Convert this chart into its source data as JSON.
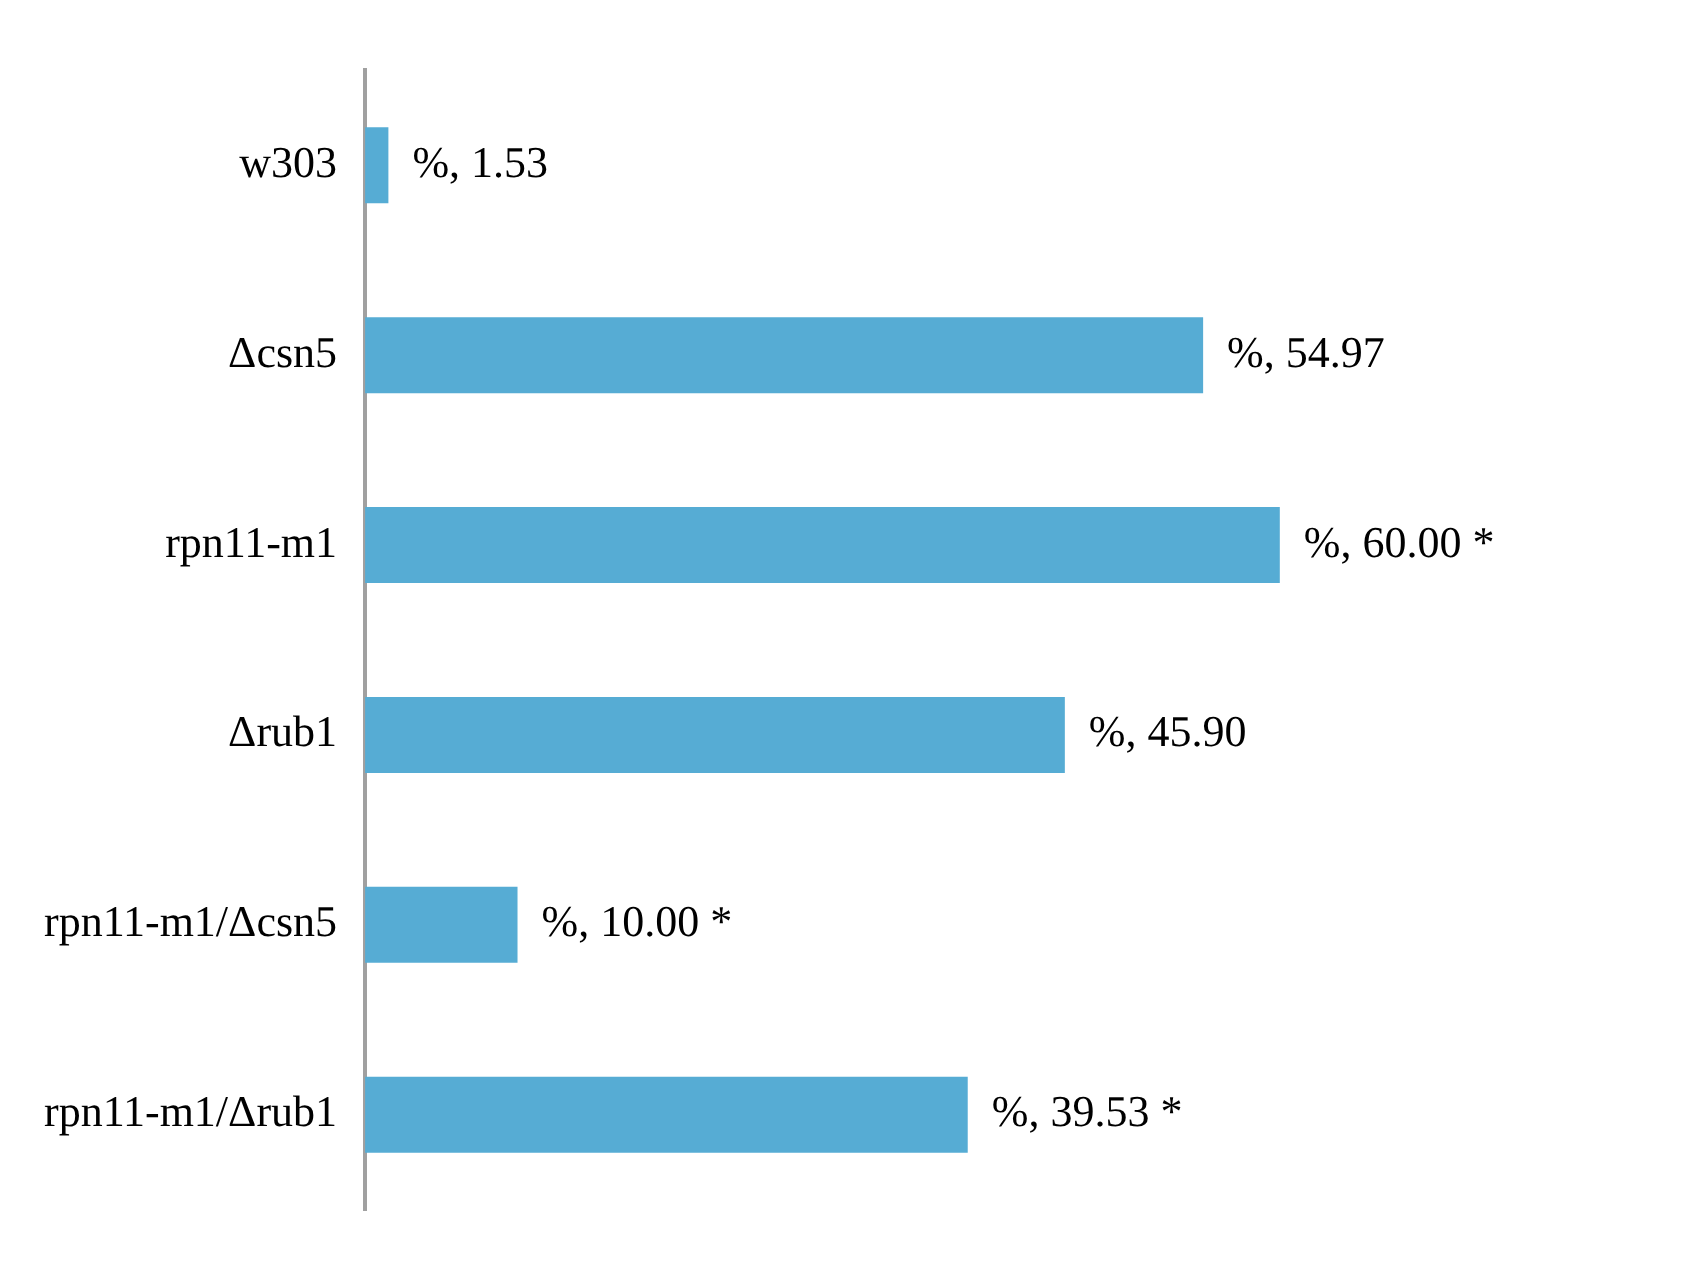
{
  "chart_data": {
    "type": "bar",
    "orientation": "horizontal",
    "categories": [
      "w303",
      "Δcsn5",
      "rpn11-m1",
      "Δrub1",
      "rpn11-m1/Δcsn5",
      "rpn11-m1/Δrub1"
    ],
    "series": [
      {
        "color": "#56acd4",
        "values": [
          1.53,
          54.97,
          60.0,
          45.9,
          10.0,
          39.53
        ],
        "value_labels": [
          "%, 1.53",
          "%, 54.97",
          "%, 60.00 *",
          "%, 45.90",
          "%, 10.00 *",
          "%, 39.53 *"
        ]
      }
    ],
    "tick_labels": "y",
    "grid": false,
    "legend": false
  }
}
